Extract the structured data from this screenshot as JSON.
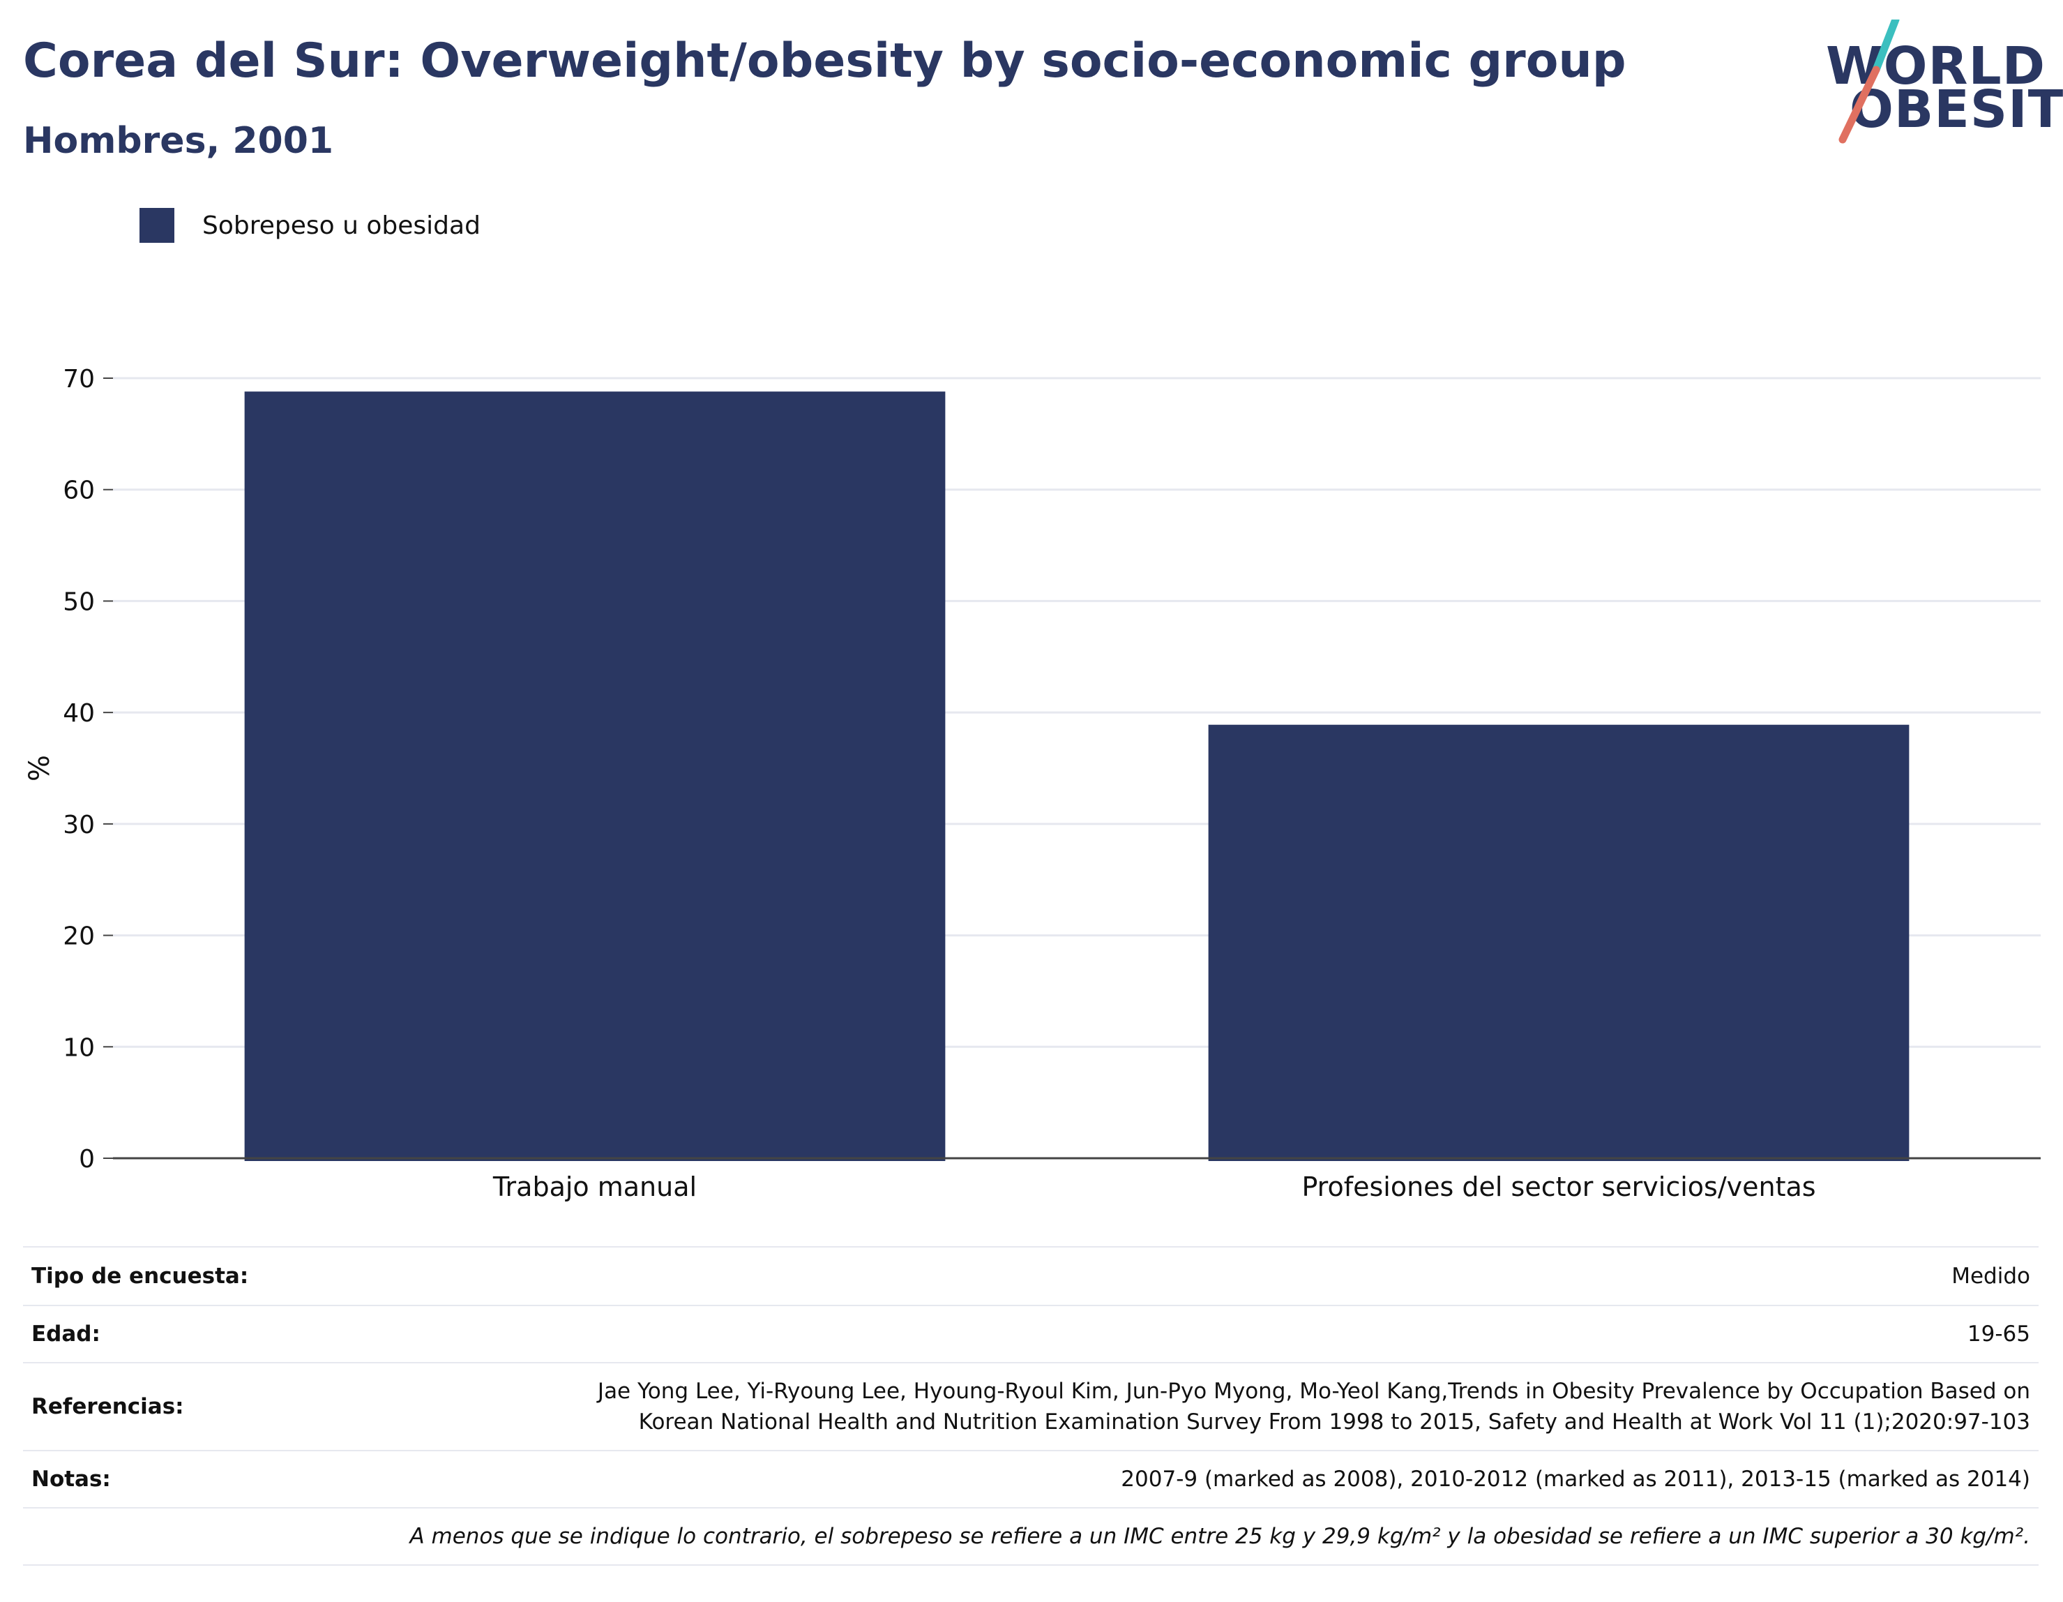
{
  "title": "Corea del Sur: Overweight/obesity by socio-economic group",
  "subtitle": "Hombres, 2001",
  "logo": {
    "line1": "WORLD",
    "line2": "OBESITY"
  },
  "colors": {
    "bar": "#2a3762",
    "title": "#2a3762",
    "grid": "#e6e8ef",
    "accent_teal": "#3bbfbf",
    "accent_coral": "#e07060"
  },
  "legend": {
    "label": "Sobrepeso u obesidad"
  },
  "chart_data": {
    "type": "bar",
    "categories": [
      "Trabajo manual",
      "Profesiones del sector servicios/ventas"
    ],
    "series": [
      {
        "name": "Sobrepeso u obesidad",
        "values": [
          68.8,
          38.9
        ]
      }
    ],
    "ylabel": "%",
    "ylim": [
      0,
      70
    ],
    "yticks": [
      0,
      10,
      20,
      30,
      40,
      50,
      60,
      70
    ],
    "grid": true,
    "legend_position": "top-left"
  },
  "info": {
    "survey_key": "Tipo de encuesta:",
    "survey_val": "Medido",
    "age_key": "Edad:",
    "age_val": "19-65",
    "ref_key": "Referencias:",
    "ref_line1": "Jae Yong Lee, Yi-Ryoung Lee, Hyoung-Ryoul Kim, Jun-Pyo Myong, Mo-Yeol Kang,Trends in Obesity Prevalence by Occupation Based on",
    "ref_line2": "Korean National Health and Nutrition Examination Survey From 1998 to 2015, Safety and Health at Work Vol 11 (1);2020:97-103",
    "notes_key": "Notas:",
    "notes_val": "2007-9 (marked as 2008), 2010-2012 (marked as 2011), 2013-15 (marked as 2014)",
    "disclaimer": "A menos que se indique lo contrario, el sobrepeso se refiere a un IMC entre 25 kg y 29,9 kg/m² y la obesidad se refiere a un IMC superior a 30 kg/m²."
  }
}
